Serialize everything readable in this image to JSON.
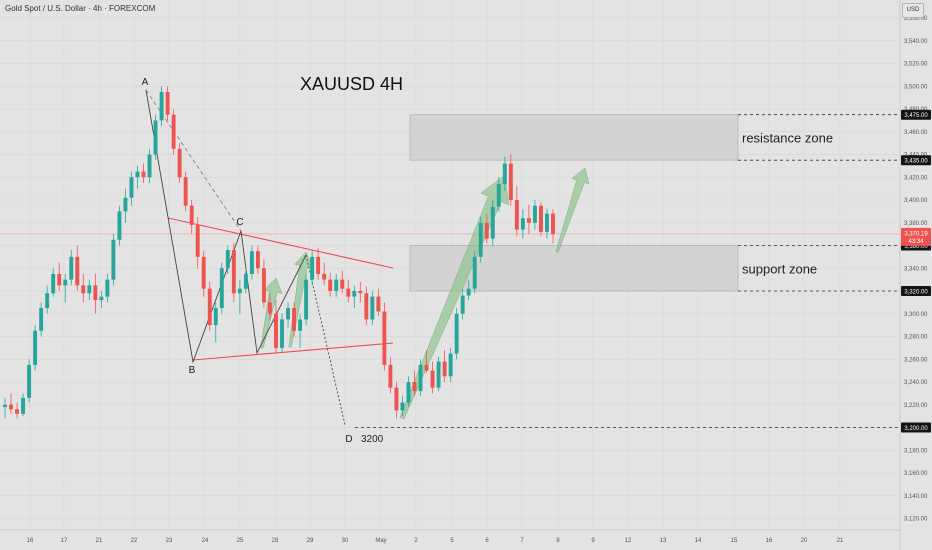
{
  "header": {
    "symbol_title": "Gold Spot / U.S. Dollar · 4h · FOREXCOM",
    "currency": "USD"
  },
  "chart_data": {
    "type": "candlestick",
    "title": "XAUUSD  4H",
    "ylim": [
      3100,
      3575
    ],
    "y_ticks": [
      3120,
      3140,
      3160,
      3180,
      3200,
      3220,
      3240,
      3260,
      3280,
      3300,
      3320,
      3340,
      3360,
      3380,
      3400,
      3420,
      3440,
      3460,
      3480,
      3500,
      3520,
      3540,
      3560
    ],
    "x_labels": [
      "16",
      "17",
      "21",
      "22",
      "23",
      "24",
      "25",
      "28",
      "29",
      "30",
      "May",
      "2",
      "5",
      "6",
      "7",
      "8",
      "9",
      "12",
      "13",
      "14",
      "15",
      "16",
      "20",
      "21"
    ],
    "candles": [
      [
        3218,
        3226,
        3208,
        3220
      ],
      [
        3220,
        3230,
        3212,
        3216
      ],
      [
        3216,
        3222,
        3208,
        3212
      ],
      [
        3212,
        3230,
        3210,
        3226
      ],
      [
        3226,
        3260,
        3222,
        3255
      ],
      [
        3255,
        3290,
        3250,
        3285
      ],
      [
        3285,
        3310,
        3280,
        3305
      ],
      [
        3305,
        3325,
        3300,
        3318
      ],
      [
        3318,
        3340,
        3315,
        3335
      ],
      [
        3335,
        3345,
        3320,
        3325
      ],
      [
        3325,
        3335,
        3310,
        3330
      ],
      [
        3330,
        3356,
        3325,
        3350
      ],
      [
        3350,
        3360,
        3320,
        3325
      ],
      [
        3325,
        3335,
        3310,
        3318
      ],
      [
        3318,
        3330,
        3312,
        3325
      ],
      [
        3325,
        3335,
        3300,
        3312
      ],
      [
        3312,
        3320,
        3305,
        3315
      ],
      [
        3315,
        3335,
        3310,
        3330
      ],
      [
        3330,
        3370,
        3325,
        3365
      ],
      [
        3365,
        3395,
        3360,
        3390
      ],
      [
        3390,
        3410,
        3380,
        3402
      ],
      [
        3402,
        3425,
        3395,
        3420
      ],
      [
        3420,
        3430,
        3410,
        3425
      ],
      [
        3425,
        3432,
        3415,
        3420
      ],
      [
        3420,
        3445,
        3415,
        3440
      ],
      [
        3440,
        3475,
        3435,
        3470
      ],
      [
        3470,
        3500,
        3465,
        3495
      ],
      [
        3495,
        3500,
        3470,
        3475
      ],
      [
        3475,
        3480,
        3440,
        3445
      ],
      [
        3445,
        3450,
        3415,
        3420
      ],
      [
        3420,
        3425,
        3390,
        3395
      ],
      [
        3395,
        3400,
        3370,
        3378
      ],
      [
        3378,
        3385,
        3340,
        3350
      ],
      [
        3350,
        3355,
        3315,
        3322
      ],
      [
        3322,
        3328,
        3285,
        3290
      ],
      [
        3290,
        3310,
        3275,
        3305
      ],
      [
        3305,
        3345,
        3300,
        3340
      ],
      [
        3340,
        3360,
        3335,
        3356
      ],
      [
        3356,
        3362,
        3310,
        3318
      ],
      [
        3318,
        3330,
        3300,
        3322
      ],
      [
        3322,
        3340,
        3318,
        3335
      ],
      [
        3335,
        3360,
        3330,
        3355
      ],
      [
        3355,
        3360,
        3335,
        3340
      ],
      [
        3340,
        3348,
        3305,
        3310
      ],
      [
        3310,
        3318,
        3295,
        3300
      ],
      [
        3300,
        3312,
        3265,
        3270
      ],
      [
        3270,
        3300,
        3266,
        3295
      ],
      [
        3295,
        3310,
        3288,
        3305
      ],
      [
        3305,
        3310,
        3280,
        3285
      ],
      [
        3285,
        3300,
        3270,
        3295
      ],
      [
        3295,
        3335,
        3290,
        3330
      ],
      [
        3330,
        3355,
        3325,
        3350
      ],
      [
        3350,
        3358,
        3330,
        3335
      ],
      [
        3335,
        3345,
        3325,
        3330
      ],
      [
        3330,
        3336,
        3315,
        3320
      ],
      [
        3320,
        3335,
        3315,
        3330
      ],
      [
        3330,
        3338,
        3318,
        3322
      ],
      [
        3322,
        3330,
        3310,
        3315
      ],
      [
        3315,
        3325,
        3305,
        3320
      ],
      [
        3320,
        3328,
        3310,
        3318
      ],
      [
        3318,
        3324,
        3290,
        3295
      ],
      [
        3295,
        3320,
        3290,
        3315
      ],
      [
        3315,
        3322,
        3298,
        3302
      ],
      [
        3302,
        3310,
        3250,
        3255
      ],
      [
        3255,
        3262,
        3230,
        3235
      ],
      [
        3235,
        3240,
        3208,
        3215
      ],
      [
        3215,
        3228,
        3210,
        3222
      ],
      [
        3222,
        3245,
        3218,
        3240
      ],
      [
        3240,
        3250,
        3228,
        3232
      ],
      [
        3232,
        3260,
        3228,
        3255
      ],
      [
        3255,
        3268,
        3248,
        3250
      ],
      [
        3250,
        3258,
        3230,
        3235
      ],
      [
        3235,
        3262,
        3232,
        3258
      ],
      [
        3258,
        3268,
        3240,
        3245
      ],
      [
        3245,
        3270,
        3240,
        3265
      ],
      [
        3265,
        3305,
        3260,
        3300
      ],
      [
        3300,
        3322,
        3295,
        3316
      ],
      [
        3316,
        3330,
        3312,
        3322
      ],
      [
        3322,
        3355,
        3318,
        3350
      ],
      [
        3350,
        3385,
        3345,
        3380
      ],
      [
        3380,
        3388,
        3362,
        3366
      ],
      [
        3366,
        3400,
        3360,
        3394
      ],
      [
        3394,
        3420,
        3390,
        3414
      ],
      [
        3414,
        3438,
        3408,
        3432
      ],
      [
        3432,
        3440,
        3395,
        3400
      ],
      [
        3400,
        3412,
        3368,
        3374
      ],
      [
        3374,
        3392,
        3366,
        3384
      ],
      [
        3384,
        3396,
        3370,
        3380
      ],
      [
        3380,
        3400,
        3374,
        3395
      ],
      [
        3395,
        3398,
        3368,
        3372
      ],
      [
        3372,
        3392,
        3366,
        3388
      ],
      [
        3388,
        3392,
        3362,
        3370
      ]
    ],
    "last_price": "3,370.19",
    "countdown": "43:34",
    "zones": [
      {
        "label": "resistance zone",
        "from": 3435,
        "to": 3475
      },
      {
        "label": "support zone",
        "from": 3320,
        "to": 3360
      }
    ],
    "level_tags": [
      "3,475.00",
      "3,435.00",
      "3,360.00",
      "3,320.00",
      "3,200.00"
    ],
    "points": {
      "A": "A",
      "B": "B",
      "C": "C",
      "D": "D",
      "D_value": "3200"
    },
    "colors": {
      "up": "#26a69a",
      "down": "#ef5350",
      "background": "#e3e3e3",
      "zone_fill": "#d3d3d3",
      "zone_border": "#b4b4b4",
      "triangle": "#ef4a55",
      "arrow": "#8bc28b",
      "price_line": "#ef9a9a"
    }
  }
}
